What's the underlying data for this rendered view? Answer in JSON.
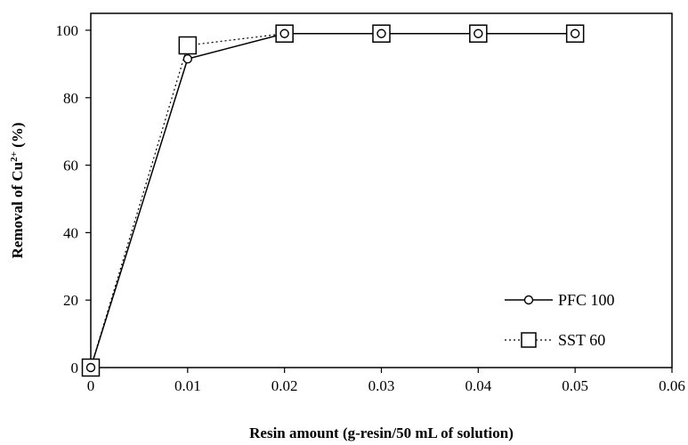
{
  "chart_data": {
    "type": "line",
    "title": "",
    "xlabel": "Resin amount (g-resin/50 mL of solution)",
    "ylabel_prefix": "Removal of Cu",
    "ylabel_sup": "2+",
    "ylabel_suffix": " (%)",
    "xlim": [
      0,
      0.06
    ],
    "ylim": [
      0,
      105
    ],
    "xticks": [
      0,
      0.01,
      0.02,
      0.03,
      0.04,
      0.05,
      0.06
    ],
    "xtick_labels": [
      "0",
      "0.01",
      "0.02",
      "0.03",
      "0.04",
      "0.05",
      "0.06"
    ],
    "yticks": [
      0,
      20,
      40,
      60,
      80,
      100
    ],
    "ytick_labels": [
      "0",
      "20",
      "40",
      "60",
      "80",
      "100"
    ],
    "grid": false,
    "legend_position": "bottom-right",
    "series": [
      {
        "name": "PFC 100",
        "marker": "circle",
        "line_style": "solid",
        "x": [
          0,
          0.01,
          0.02,
          0.03,
          0.04,
          0.05
        ],
        "y": [
          0,
          91.5,
          99,
          99,
          99,
          99
        ]
      },
      {
        "name": "SST 60",
        "marker": "square",
        "line_style": "dotted",
        "x": [
          0,
          0.01,
          0.02,
          0.03,
          0.04,
          0.05
        ],
        "y": [
          0,
          95.5,
          99,
          99,
          99,
          99
        ]
      }
    ],
    "colors": {
      "line": "#000000",
      "background": "#ffffff"
    }
  }
}
